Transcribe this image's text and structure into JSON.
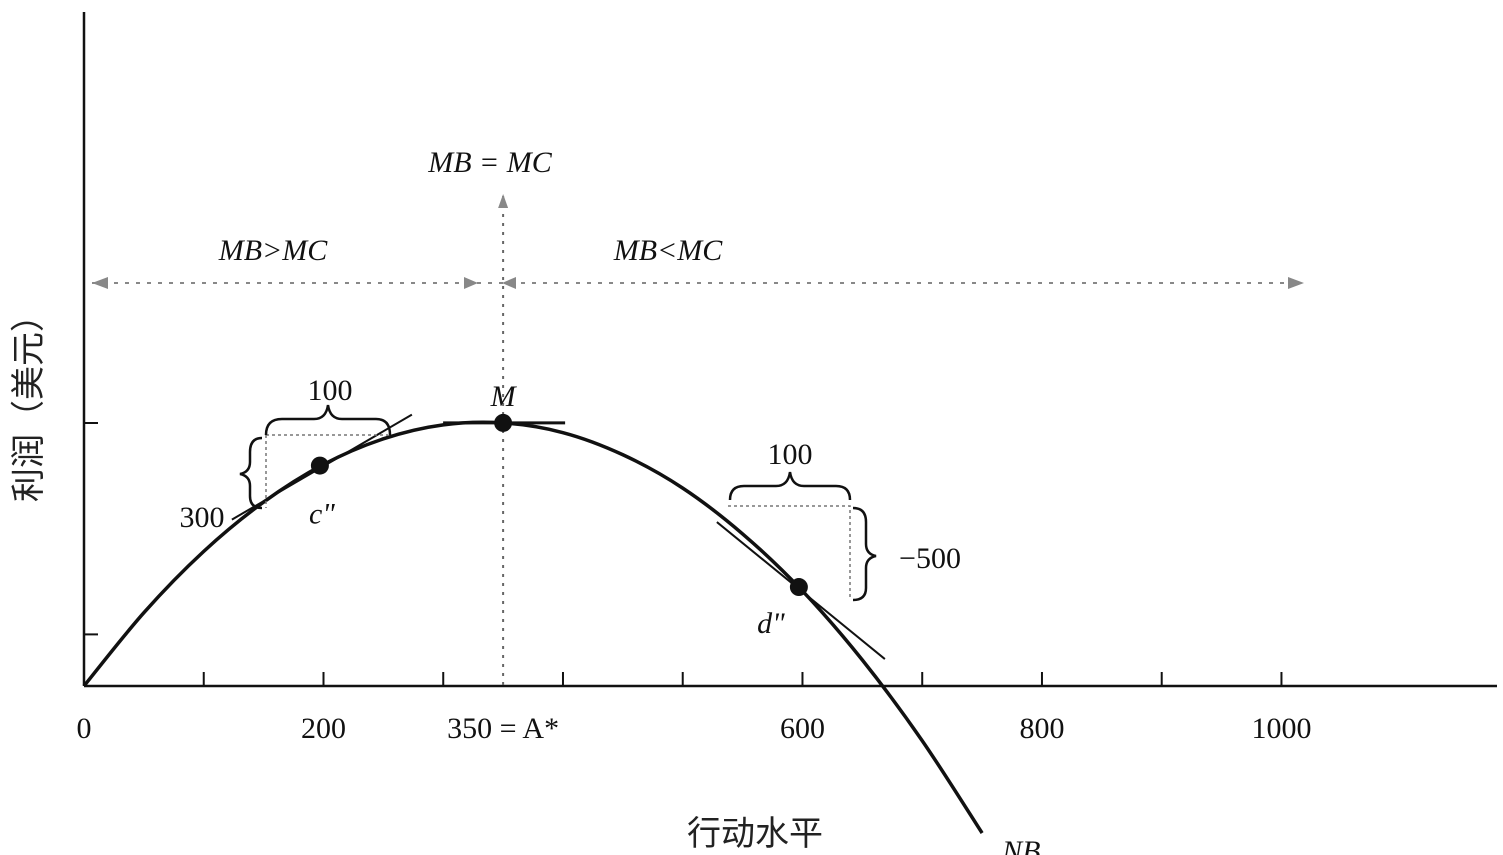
{
  "chart_data": {
    "type": "line",
    "title": "",
    "xlabel": "行动水平",
    "ylabel": "利润（美元）",
    "xlim": [
      0,
      1180
    ],
    "ylim": [
      -370,
      1000
    ],
    "x_tick_positions": [
      0,
      100,
      200,
      300,
      400,
      500,
      600,
      700,
      800,
      900,
      1000
    ],
    "x_tick_labels": [
      {
        "x": 0,
        "label": "0"
      },
      {
        "x": 200,
        "label": "200"
      },
      {
        "x": 350,
        "label": "350 = A*"
      },
      {
        "x": 600,
        "label": "600"
      },
      {
        "x": 800,
        "label": "800"
      },
      {
        "x": 1000,
        "label": "1000"
      }
    ],
    "y_ticks": [
      500
    ],
    "curve": {
      "name": "NB",
      "x": [
        0,
        50,
        100,
        150,
        200,
        250,
        300,
        350,
        400,
        450,
        500,
        550,
        600,
        650,
        700,
        750
      ],
      "y": [
        0,
        189,
        347,
        474,
        571,
        637,
        673,
        678,
        653,
        596,
        510,
        392,
        245,
        67,
        -141,
        -379
      ]
    },
    "points": [
      {
        "name": "c\"",
        "x": 197,
        "y": 568
      },
      {
        "name": "M",
        "x": 350,
        "y": 678
      },
      {
        "name": "d\"",
        "x": 597,
        "y": 255
      }
    ],
    "annotations": {
      "optimum": "MB = MC",
      "left_region": "MB>MC",
      "right_region": "MB<MC",
      "left_run": "100",
      "left_rise": "300",
      "right_run": "100",
      "right_rise": "−500"
    }
  }
}
